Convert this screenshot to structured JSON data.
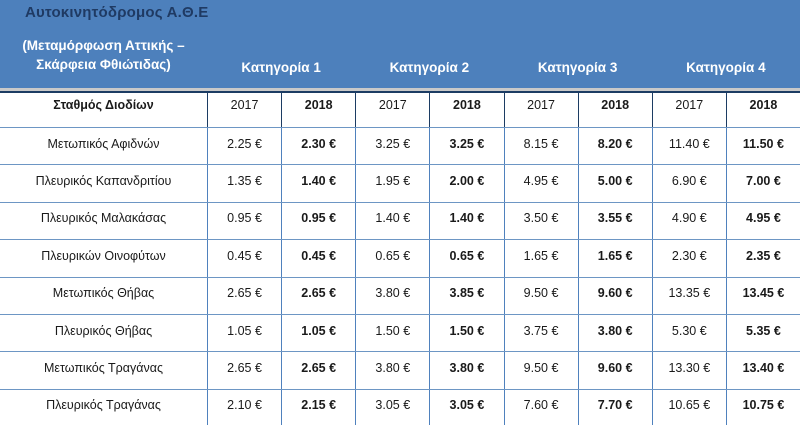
{
  "header": {
    "title": "Αυτοκινητόδρομος Α.Θ.Ε",
    "subtitle_line1": "(Μεταμόρφωση Αττικής –",
    "subtitle_line2": "Σκάρφεια Φθιώτιδας)",
    "categories": [
      "Κατηγορία  1",
      "Κατηγορία 2",
      "Κατηγορία 3",
      "Κατηγορία 4"
    ]
  },
  "table": {
    "station_header": "Σταθμός Διοδίων",
    "year_columns": [
      "2017",
      "2018",
      "2017",
      "2018",
      "2017",
      "2018",
      "2017",
      "2018"
    ],
    "rows": [
      {
        "station": "Μετωπικός Αφιδνών",
        "values": [
          "2.25 €",
          "2.30 €",
          "3.25 €",
          "3.25 €",
          "8.15 €",
          "8.20 €",
          "11.40 €",
          "11.50 €"
        ],
        "increased": [
          false,
          true,
          false,
          false,
          false,
          true,
          false,
          true
        ]
      },
      {
        "station": "Πλευρικός Καπανδριτίου",
        "values": [
          "1.35 €",
          "1.40 €",
          "1.95 €",
          "2.00 €",
          "4.95 €",
          "5.00 €",
          "6.90 €",
          "7.00 €"
        ],
        "increased": [
          false,
          true,
          false,
          true,
          false,
          true,
          false,
          true
        ]
      },
      {
        "station": "Πλευρικός Μαλακάσας",
        "values": [
          "0.95 €",
          "0.95 €",
          "1.40 €",
          "1.40 €",
          "3.50 €",
          "3.55 €",
          "4.90 €",
          "4.95 €"
        ],
        "increased": [
          false,
          false,
          false,
          false,
          false,
          true,
          false,
          true
        ]
      },
      {
        "station": "Πλευρικών Οινοφύτων",
        "values": [
          "0.45 €",
          "0.45 €",
          "0.65 €",
          "0.65 €",
          "1.65 €",
          "1.65 €",
          "2.30 €",
          "2.35 €"
        ],
        "increased": [
          false,
          false,
          false,
          false,
          false,
          false,
          false,
          true
        ]
      },
      {
        "station": "Μετωπικός Θήβας",
        "values": [
          "2.65 €",
          "2.65 €",
          "3.80 €",
          "3.85 €",
          "9.50 €",
          "9.60 €",
          "13.35 €",
          "13.45 €"
        ],
        "increased": [
          false,
          false,
          false,
          true,
          false,
          true,
          false,
          true
        ]
      },
      {
        "station": "Πλευρικός Θήβας",
        "values": [
          "1.05 €",
          "1.05 €",
          "1.50 €",
          "1.50 €",
          "3.75 €",
          "3.80 €",
          "5.30 €",
          "5.35 €"
        ],
        "increased": [
          false,
          false,
          false,
          false,
          false,
          true,
          false,
          true
        ]
      },
      {
        "station": "Μετωπικός Τραγάνας",
        "values": [
          "2.65 €",
          "2.65 €",
          "3.80 €",
          "3.80 €",
          "9.50 €",
          "9.60 €",
          "13.30 €",
          "13.40 €"
        ],
        "increased": [
          false,
          false,
          false,
          false,
          false,
          true,
          false,
          true
        ]
      },
      {
        "station": "Πλευρικός Τραγάνας",
        "values": [
          "2.10 €",
          "2.15 €",
          "3.05 €",
          "3.05 €",
          "7.60 €",
          "7.70 €",
          "10.65 €",
          "10.75 €"
        ],
        "increased": [
          false,
          true,
          false,
          false,
          false,
          true,
          false,
          true
        ]
      }
    ]
  },
  "colors": {
    "band_blue": "#4d80bc",
    "title_navy": "#1f3a63",
    "subtitle_white": "#ffffff",
    "increase_red": "#e60000",
    "text_black": "#1a1a1a",
    "grid_blue": "#4f81bd",
    "row_divider_blue": "#6d96c4",
    "dark_border_navy": "#1c3c63",
    "strip_gray": "#c9c9c9"
  }
}
